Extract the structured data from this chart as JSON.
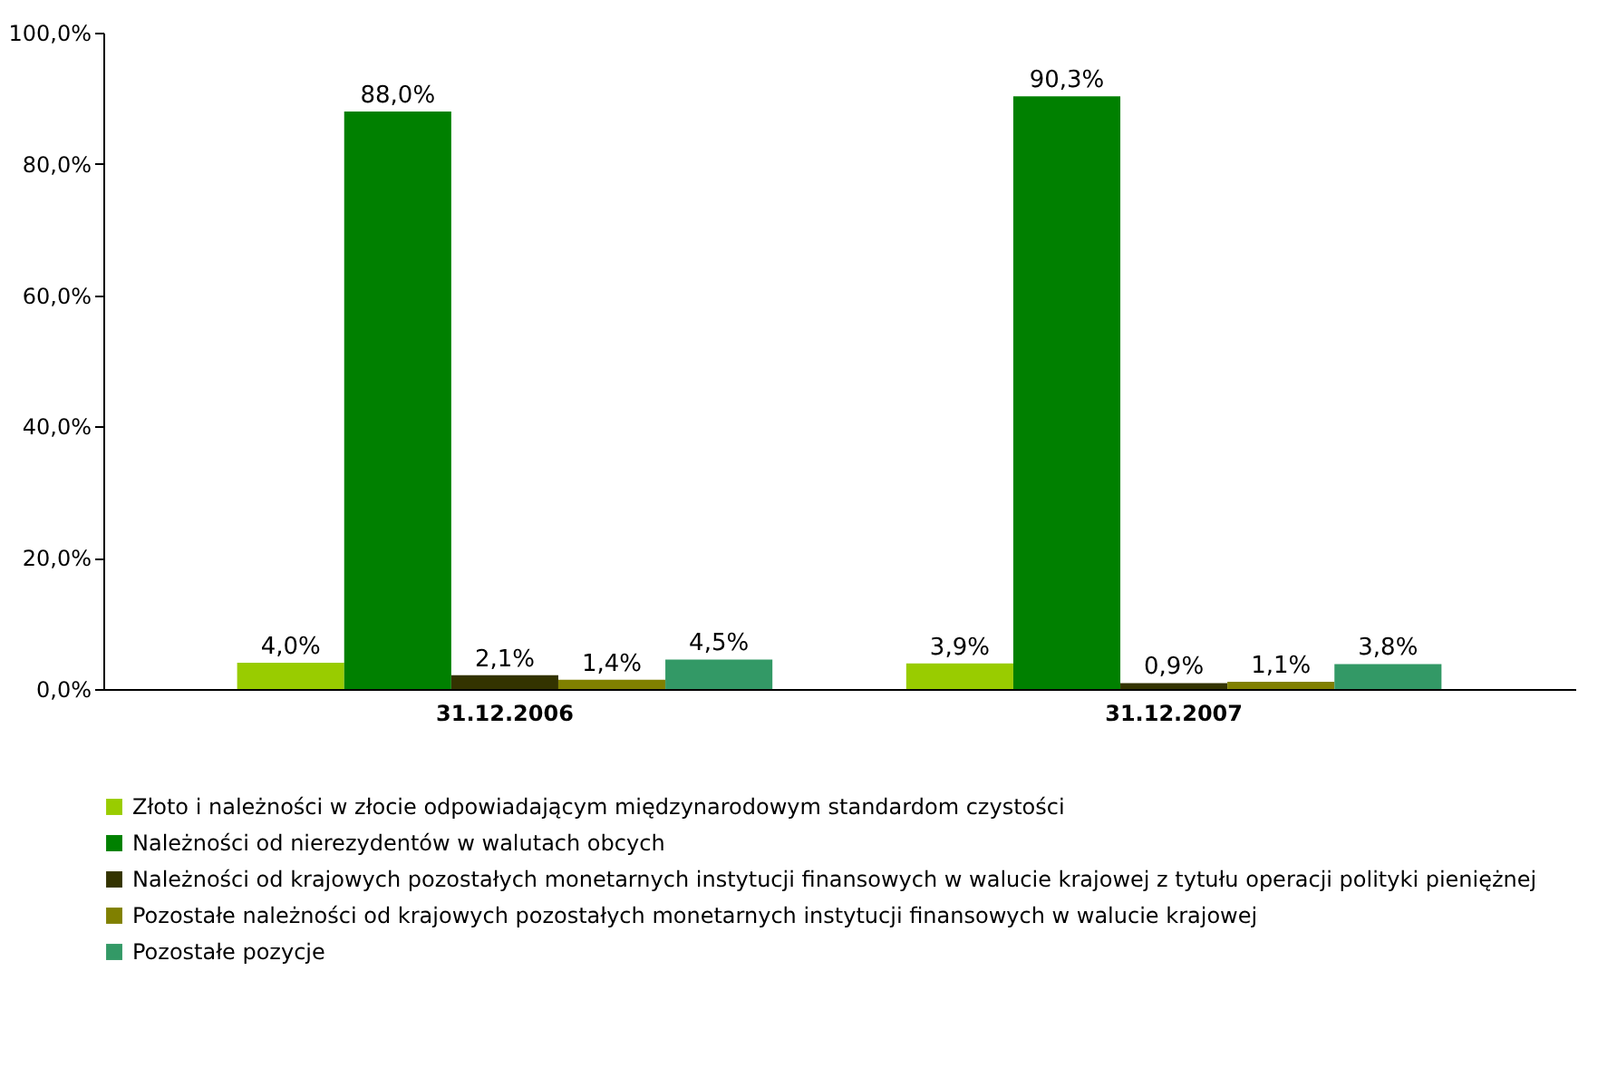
{
  "chart_data": {
    "type": "bar",
    "categories": [
      "31.12.2006",
      "31.12.2007"
    ],
    "series": [
      {
        "name": "Złoto i należności w złocie odpowiadającym międzynarodowym standardom czystości",
        "color": "#99cc00",
        "values": [
          4.0,
          3.9
        ],
        "value_labels": [
          "4,0%",
          "3,9%"
        ]
      },
      {
        "name": "Należności od nierezydentów w walutach obcych",
        "color": "#008000",
        "values": [
          88.0,
          90.3
        ],
        "value_labels": [
          "88,0%",
          "90,3%"
        ]
      },
      {
        "name": "Należności od krajowych pozostałych monetarnych instytucji finansowych w walucie krajowej z tytułu operacji polityki pieniężnej",
        "color": "#333300",
        "values": [
          2.1,
          0.9
        ],
        "value_labels": [
          "2,1%",
          "0,9%"
        ]
      },
      {
        "name": "Pozostałe należności od krajowych pozostałych monetarnych instytucji finansowych w walucie krajowej",
        "color": "#808000",
        "values": [
          1.4,
          1.1
        ],
        "value_labels": [
          "1,4%",
          "1,1%"
        ]
      },
      {
        "name": "Pozostałe pozycje",
        "color": "#339966",
        "values": [
          4.5,
          3.8
        ],
        "value_labels": [
          "4,5%",
          "3,8%"
        ]
      }
    ],
    "ylim": [
      0,
      100
    ],
    "yticks": [
      {
        "value": 0,
        "label": "0,0%"
      },
      {
        "value": 20,
        "label": "20,0%"
      },
      {
        "value": 40,
        "label": "40,0%"
      },
      {
        "value": 60,
        "label": "60,0%"
      },
      {
        "value": 80,
        "label": "80,0%"
      },
      {
        "value": 100,
        "label": "100,0%"
      }
    ],
    "grid": false,
    "legend": "bottom"
  }
}
